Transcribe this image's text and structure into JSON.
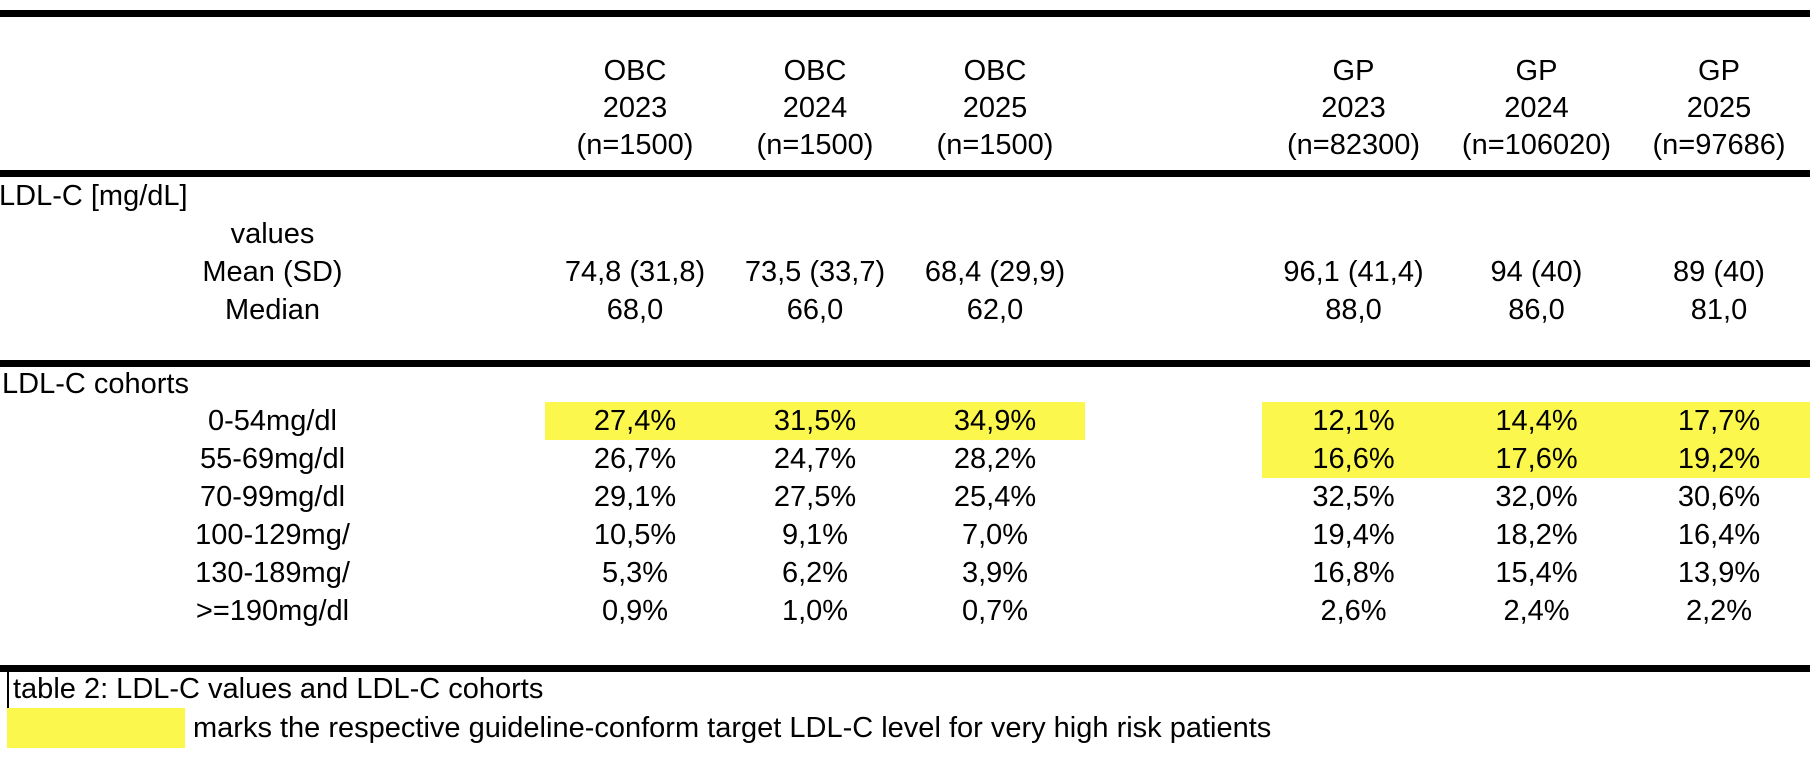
{
  "colors": {
    "highlight": "#fbf74d",
    "rule": "#000000",
    "text": "#000000",
    "background": "#ffffff"
  },
  "header": {
    "columns": [
      {
        "group": "OBC",
        "year": "2023",
        "n": "(n=1500)"
      },
      {
        "group": "OBC",
        "year": "2024",
        "n": "(n=1500)"
      },
      {
        "group": "OBC",
        "year": "2025",
        "n": "(n=1500)"
      },
      {
        "group": "GP",
        "year": "2023",
        "n": "(n=82300)"
      },
      {
        "group": "GP",
        "year": "2024",
        "n": "(n=106020)"
      },
      {
        "group": "GP",
        "year": "2025",
        "n": "(n=97686)"
      }
    ]
  },
  "sections": [
    {
      "title": "LDL-C [mg/dL]",
      "rows": [
        {
          "label": "values",
          "values": [
            "",
            "",
            "",
            "",
            "",
            ""
          ],
          "highlighted": [
            false,
            false,
            false,
            false,
            false,
            false
          ]
        },
        {
          "label": "Mean (SD)",
          "values": [
            "74,8 (31,8)",
            "73,5 (33,7)",
            "68,4 (29,9)",
            "96,1 (41,4)",
            "94 (40)",
            "89 (40)"
          ],
          "highlighted": [
            false,
            false,
            false,
            false,
            false,
            false
          ]
        },
        {
          "label": "Median",
          "values": [
            "68,0",
            "66,0",
            "62,0",
            "88,0",
            "86,0",
            "81,0"
          ],
          "highlighted": [
            false,
            false,
            false,
            false,
            false,
            false
          ]
        }
      ]
    },
    {
      "title": "LDL-C cohorts",
      "rows": [
        {
          "label": "0-54mg/dl",
          "values": [
            "27,4%",
            "31,5%",
            "34,9%",
            "12,1%",
            "14,4%",
            "17,7%"
          ],
          "highlighted": [
            true,
            true,
            true,
            true,
            true,
            true
          ]
        },
        {
          "label": "55-69mg/dl",
          "values": [
            "26,7%",
            "24,7%",
            "28,2%",
            "16,6%",
            "17,6%",
            "19,2%"
          ],
          "highlighted": [
            false,
            false,
            false,
            true,
            true,
            true
          ]
        },
        {
          "label": "70-99mg/dl",
          "values": [
            "29,1%",
            "27,5%",
            "25,4%",
            "32,5%",
            "32,0%",
            "30,6%"
          ],
          "highlighted": [
            false,
            false,
            false,
            false,
            false,
            false
          ]
        },
        {
          "label": "100-129mg/",
          "values": [
            "10,5%",
            "9,1%",
            "7,0%",
            "19,4%",
            "18,2%",
            "16,4%"
          ],
          "highlighted": [
            false,
            false,
            false,
            false,
            false,
            false
          ]
        },
        {
          "label": "130-189mg/",
          "values": [
            "5,3%",
            "6,2%",
            "3,9%",
            "16,8%",
            "15,4%",
            "13,9%"
          ],
          "highlighted": [
            false,
            false,
            false,
            false,
            false,
            false
          ]
        },
        {
          "label": ">=190mg/dl",
          "values": [
            "0,9%",
            "1,0%",
            "0,7%",
            "2,6%",
            "2,4%",
            "2,2%"
          ],
          "highlighted": [
            false,
            false,
            false,
            false,
            false,
            false
          ]
        }
      ]
    }
  ],
  "footer": {
    "caption": "table 2: LDL-C values and LDL-C cohorts",
    "legend": "marks the respective guideline-conform target LDL-C level for very high risk patients"
  }
}
